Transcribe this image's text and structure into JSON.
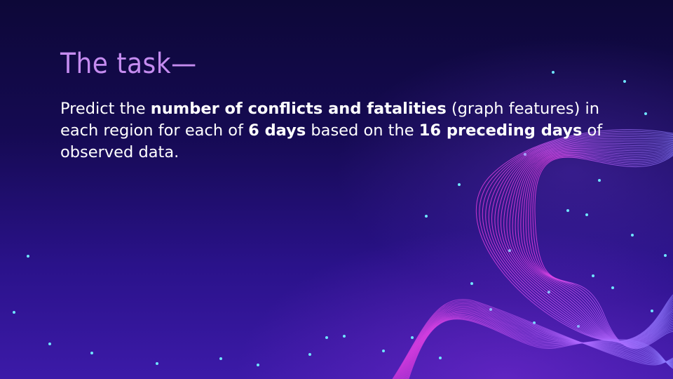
{
  "slide": {
    "title": "The task—",
    "body": {
      "t1": "Predict the ",
      "b1": "number of conflicts and fatalities",
      "t2": " (graph features) in each region for each of ",
      "b2": "6 days",
      "t3": " based on the ",
      "b3": "16 preceding days",
      "t4": " of observed data."
    }
  },
  "colors": {
    "background_top": "#0d0838",
    "background_bottom": "#3c1aa8",
    "title": "#c58cf0",
    "text": "#ffffff",
    "accent_pink": "#e040f0",
    "accent_cyan": "#4fd8f5"
  },
  "decoration": {
    "style": "abstract glowing wave lines and vertical light rays with dots"
  }
}
